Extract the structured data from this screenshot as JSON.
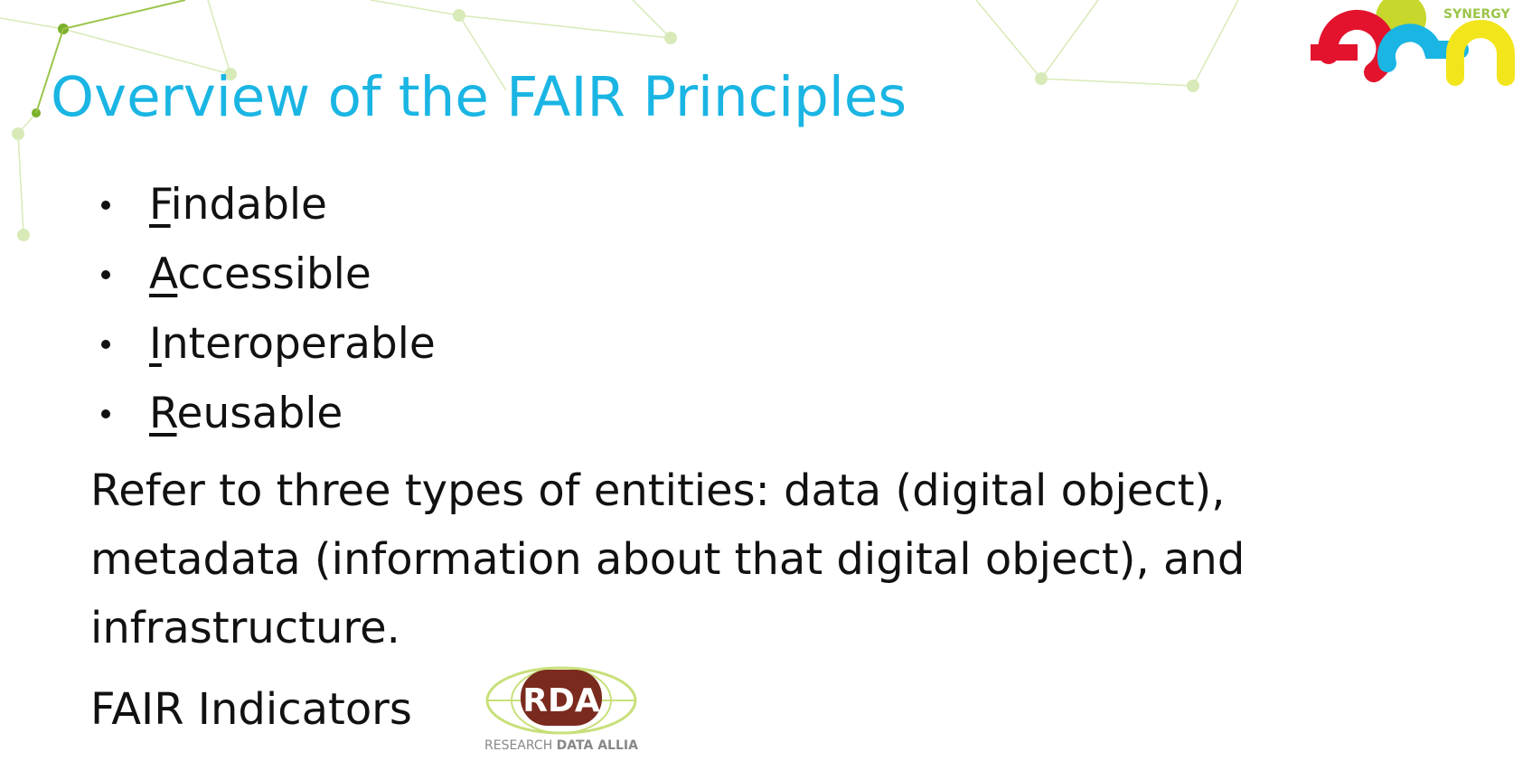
{
  "slide": {
    "title": "Overview of the FAIR Principles",
    "bullets": [
      "Findable",
      "Accessible",
      "Interoperable",
      "Reusable"
    ],
    "paragraph": "Refer to three types of entities: data (digital object), metadata (information about that digital object), and infrastructure.",
    "indicators": "FAIR Indicators",
    "logo_top": "SYNERGY",
    "logo_rda": {
      "mark": "RDA",
      "caption_light": "RESEARCH",
      "caption_bold": "DATA ALLIANCE"
    }
  }
}
